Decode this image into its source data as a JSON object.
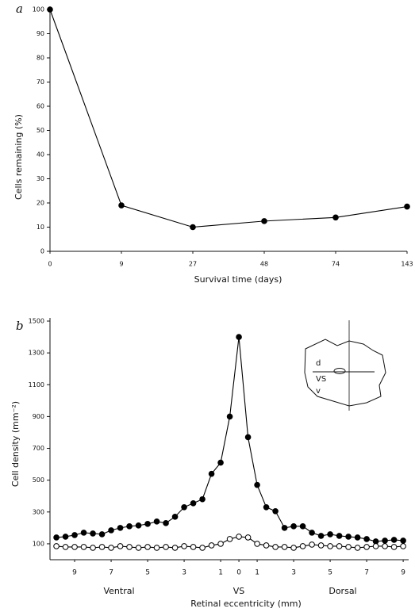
{
  "chart_data": [
    {
      "type": "line",
      "panel_label": "a",
      "x_label": "Survival time (days)",
      "y_label": "Cells remaining (%)",
      "categories": [
        "0",
        "9",
        "27",
        "48",
        "74",
        "143"
      ],
      "series": [
        {
          "color": "#000000",
          "fill": "#000000",
          "values": [
            100,
            19,
            10,
            12.5,
            14,
            18.5
          ]
        }
      ],
      "ylim": [
        0,
        100
      ],
      "yticks": [
        0,
        10,
        20,
        30,
        40,
        50,
        60,
        70,
        80,
        90,
        100
      ],
      "grid": false
    },
    {
      "type": "line",
      "panel_label": "b",
      "x_label": "Retinal eccentricity (mm)",
      "y_label": "Cell density (mm⁻²)",
      "annotations": [
        "Ventral",
        "VS",
        "Dorsal"
      ],
      "inset_labels": [
        "d",
        "VS",
        "v"
      ],
      "x": [
        -10,
        -9.5,
        -9,
        -8.5,
        -8,
        -7.5,
        -7,
        -6.5,
        -6,
        -5.5,
        -5,
        -4.5,
        -4,
        -3.5,
        -3,
        -2.5,
        -2,
        -1.5,
        -1,
        -0.5,
        0,
        0.5,
        1,
        1.5,
        2,
        2.5,
        3,
        3.5,
        4,
        4.5,
        5,
        5.5,
        6,
        6.5,
        7,
        7.5,
        8,
        8.5,
        9
      ],
      "series": [
        {
          "color": "#000000",
          "fill": "#000000",
          "values": [
            140,
            145,
            155,
            170,
            165,
            160,
            185,
            200,
            210,
            215,
            225,
            240,
            230,
            270,
            330,
            355,
            380,
            540,
            610,
            900,
            1400,
            770,
            470,
            330,
            305,
            200,
            210,
            210,
            170,
            150,
            160,
            150,
            145,
            140,
            130,
            115,
            120,
            125,
            120
          ]
        },
        {
          "color": "#000000",
          "fill": "#ffffff",
          "values": [
            85,
            80,
            80,
            80,
            75,
            80,
            75,
            85,
            80,
            75,
            80,
            75,
            80,
            75,
            85,
            80,
            75,
            90,
            100,
            130,
            145,
            140,
            100,
            90,
            80,
            80,
            75,
            85,
            95,
            90,
            85,
            85,
            80,
            75,
            80,
            85,
            85,
            80,
            85
          ]
        }
      ],
      "xlim": [
        -10.35,
        9.3
      ],
      "xticks": [
        {
          "value": -9,
          "label": "9"
        },
        {
          "value": -7,
          "label": "7"
        },
        {
          "value": -5,
          "label": "5"
        },
        {
          "value": -3,
          "label": "3"
        },
        {
          "value": -1,
          "label": "1"
        },
        0,
        1,
        3,
        5,
        7,
        9
      ],
      "ylim": [
        0,
        1500
      ],
      "yticks": [
        100,
        300,
        500,
        700,
        900,
        1100,
        1300,
        1500
      ],
      "grid": false
    }
  ]
}
